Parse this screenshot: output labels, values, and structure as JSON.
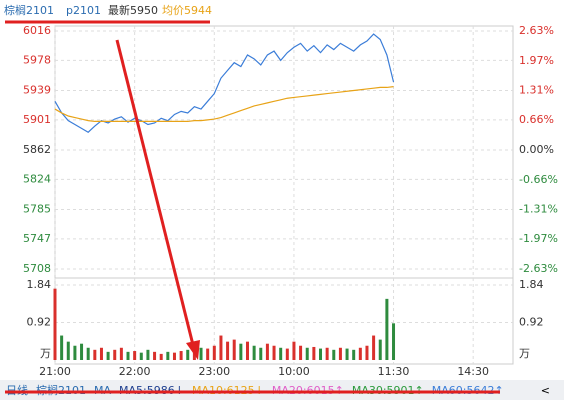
{
  "header": {
    "contract": "棕榈2101",
    "code": "p2101",
    "latest": "最新5950",
    "avg_price": "均价5944"
  },
  "chart_data": [
    {
      "type": "line",
      "x": [
        0,
        5,
        10,
        15,
        20,
        25,
        30,
        35,
        40,
        45,
        50,
        55,
        60,
        65,
        70,
        75,
        80,
        85,
        90,
        95,
        100,
        105,
        110,
        115,
        120,
        125,
        130,
        135,
        140,
        145,
        150,
        155,
        160,
        165,
        170,
        175,
        180,
        185,
        190,
        195,
        200,
        205,
        210,
        215,
        220,
        225,
        230,
        235,
        240,
        245,
        250,
        255
      ],
      "series": [
        {
          "color": "#3b7dd8",
          "values": [
            5925,
            5910,
            5900,
            5895,
            5890,
            5885,
            5893,
            5900,
            5897,
            5902,
            5905,
            5898,
            5903,
            5900,
            5895,
            5897,
            5903,
            5900,
            5908,
            5912,
            5910,
            5918,
            5915,
            5925,
            5935,
            5955,
            5965,
            5975,
            5970,
            5985,
            5980,
            5972,
            5985,
            5990,
            5978,
            5988,
            5995,
            6000,
            5990,
            5997,
            5988,
            5998,
            5992,
            6000,
            5995,
            5990,
            5998,
            6003,
            6012,
            6005,
            5985,
            5950
          ]
        },
        {
          "color": "#e8a317",
          "values": [
            5915,
            5910,
            5906,
            5904,
            5902,
            5900,
            5899,
            5899,
            5899,
            5899,
            5899,
            5899,
            5899,
            5899,
            5899,
            5899,
            5899,
            5899,
            5899,
            5899,
            5899,
            5900,
            5900,
            5901,
            5902,
            5904,
            5907,
            5910,
            5913,
            5916,
            5919,
            5921,
            5923,
            5925,
            5927,
            5929,
            5930,
            5931,
            5932,
            5933,
            5934,
            5935,
            5936,
            5937,
            5938,
            5939,
            5940,
            5941,
            5942,
            5943,
            5943,
            5944
          ]
        }
      ],
      "xlim": [
        0,
        345
      ],
      "ylim": [
        5708,
        6016
      ],
      "yticks": [
        6016,
        5978,
        5939,
        5901,
        5862,
        5824,
        5785,
        5747,
        5708
      ],
      "y2lim": [
        -2.63,
        2.63
      ],
      "y2ticks": [
        {
          "value": 2.63,
          "label": "2.63%"
        },
        {
          "value": 1.97,
          "label": "1.97%"
        },
        {
          "value": 1.31,
          "label": "1.31%"
        },
        {
          "value": 0.66,
          "label": "0.66%"
        },
        {
          "value": 0,
          "label": "0.00%"
        },
        {
          "value": -0.66,
          "label": "-0.66%"
        },
        {
          "value": -1.31,
          "label": "-1.31%"
        },
        {
          "value": -1.97,
          "label": "-1.97%"
        },
        {
          "value": -2.63,
          "label": "-2.63%"
        }
      ],
      "up_color": "#d9302c",
      "down_color": "#2e8b3e",
      "flat_color": "#333333",
      "grid": true
    },
    {
      "type": "bar",
      "x": [
        0,
        5,
        10,
        15,
        20,
        25,
        30,
        35,
        40,
        45,
        50,
        55,
        60,
        65,
        70,
        75,
        80,
        85,
        90,
        95,
        100,
        105,
        110,
        115,
        120,
        125,
        130,
        135,
        140,
        145,
        150,
        155,
        160,
        165,
        170,
        175,
        180,
        185,
        190,
        195,
        200,
        205,
        210,
        215,
        220,
        225,
        230,
        235,
        240,
        245,
        250,
        255
      ],
      "values": [
        1.75,
        0.6,
        0.45,
        0.35,
        0.4,
        0.3,
        0.25,
        0.3,
        0.2,
        0.25,
        0.3,
        0.2,
        0.22,
        0.18,
        0.25,
        0.2,
        0.15,
        0.2,
        0.18,
        0.22,
        0.25,
        0.2,
        0.3,
        0.28,
        0.35,
        0.6,
        0.45,
        0.5,
        0.4,
        0.45,
        0.35,
        0.3,
        0.4,
        0.35,
        0.3,
        0.28,
        0.45,
        0.35,
        0.3,
        0.32,
        0.28,
        0.3,
        0.25,
        0.3,
        0.28,
        0.25,
        0.3,
        0.35,
        0.6,
        0.5,
        1.5,
        0.9
      ],
      "xlim": [
        0,
        345
      ],
      "ylim": [
        0,
        1.84
      ],
      "yticks": [
        {
          "value": 0,
          "label": "万"
        },
        0.92,
        1.84
      ],
      "xticks": [
        {
          "value": 0,
          "label": "21:00"
        },
        {
          "value": 60,
          "label": "22:00"
        },
        {
          "value": 120,
          "label": "23:00"
        },
        {
          "value": 180,
          "label": "10:00"
        },
        {
          "value": 255,
          "label": "11:30"
        },
        {
          "value": 315,
          "label": "14:30"
        }
      ],
      "up_color": "#d9302c",
      "down_color": "#2e8b3e"
    }
  ],
  "footer": {
    "period": "日线",
    "contract": "棕榈2101",
    "ma": "MA",
    "nav": "<",
    "ma_items": [
      {
        "label": "MA5:5986↓",
        "color": "#1f3f8f"
      },
      {
        "label": "MA10:6125↓",
        "color": "#e8a317"
      },
      {
        "label": "MA20:6015↑",
        "color": "#e05fc8"
      },
      {
        "label": "MA30:5901↑",
        "color": "#2e9b3e"
      },
      {
        "label": "MA60:5642↑",
        "color": "#3b7dd8"
      }
    ]
  }
}
